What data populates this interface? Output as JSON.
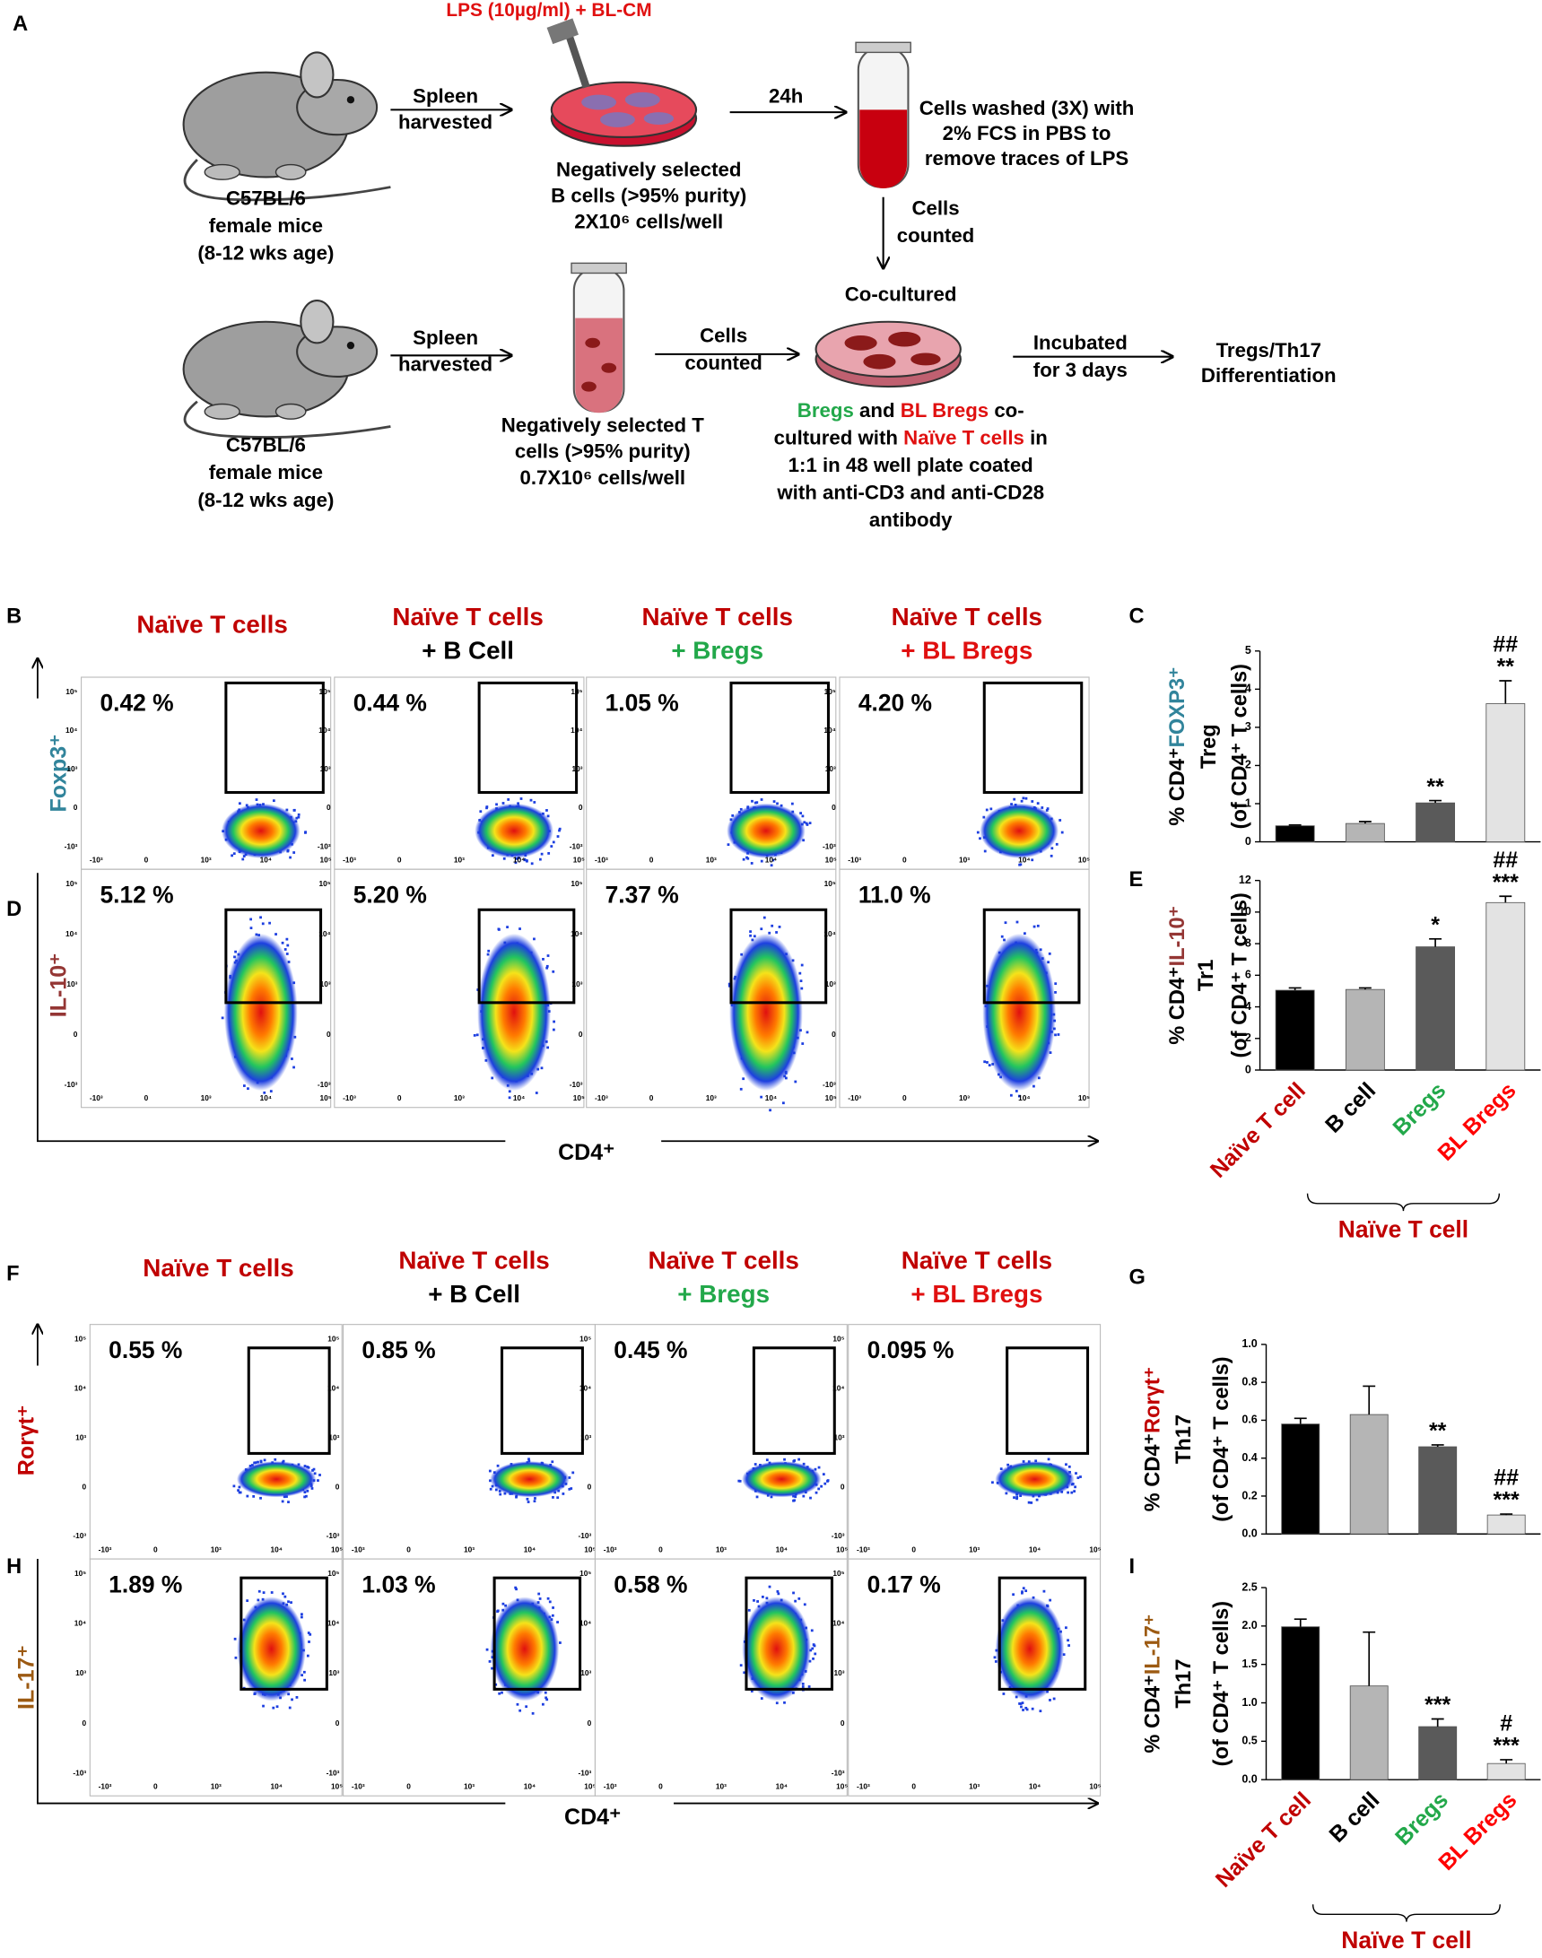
{
  "panel_a": {
    "label": "A",
    "treatment": "LPS (10µg/ml) + BL-CM",
    "mouse_1": [
      "C57BL/6",
      "female mice",
      "(8-12 wks age)"
    ],
    "spleen_1": [
      "Spleen",
      "harvested"
    ],
    "b_cells": [
      "Negatively selected",
      "B cells (>95% purity)",
      "2X10⁶ cells/well"
    ],
    "time": "24h",
    "wash": [
      "Cells washed (3X) with",
      "2% FCS in PBS to",
      "remove traces of LPS"
    ],
    "counted_1": [
      "Cells",
      "counted"
    ],
    "coculture": "Co-cultured",
    "mouse_2": [
      "C57BL/6",
      "female mice",
      "(8-12 wks age)"
    ],
    "spleen_2": [
      "Spleen",
      "harvested"
    ],
    "t_cells": [
      "Negatively selected T",
      "cells (>95% purity)",
      "0.7X10⁶ cells/well"
    ],
    "counted_2": [
      "Cells",
      "counted"
    ],
    "incubate": [
      "Incubated",
      "for 3 days"
    ],
    "outcome": [
      "Tregs/Th17",
      "Differentiation"
    ],
    "coculture_note": [
      [
        {
          "text": "Bregs",
          "color": "#22a84a"
        },
        {
          "text": " and "
        },
        {
          "text": "BL Bregs",
          "color": "#e01010"
        },
        {
          "text": " co-"
        }
      ],
      [
        {
          "text": "cultured with "
        },
        {
          "text": "Naïve T cells",
          "color": "#e01010"
        },
        {
          "text": " in"
        }
      ],
      [
        {
          "text": "1:1 in 48 well plate coated"
        }
      ],
      [
        {
          "text": "with anti-CD3 and anti-CD28"
        }
      ],
      [
        {
          "text": "antibody"
        }
      ]
    ]
  },
  "flow_treg": {
    "panel_labels": [
      "B",
      "D"
    ],
    "headers": [
      [
        {
          "text": "Naïve T cells",
          "color": "#c00000"
        }
      ],
      [
        {
          "text": "Naïve T cells",
          "color": "#c00000"
        },
        {
          "text": "+ B Cell",
          "color": "#000000"
        }
      ],
      [
        {
          "text": "Naïve T cells",
          "color": "#c00000"
        },
        {
          "text": "+ Bregs",
          "color": "#22a84a"
        }
      ],
      [
        {
          "text": "Naïve T cells",
          "color": "#c00000"
        },
        {
          "text": "+ BL Bregs",
          "color": "#e01010"
        }
      ]
    ],
    "rows": [
      {
        "label": "Foxp3⁺",
        "color": "#31849b",
        "percents": [
          "0.42 %",
          "0.44 %",
          "1.05 %",
          "4.20 %"
        ]
      },
      {
        "label": "IL-10⁺",
        "color": "#943634",
        "percents": [
          "5.12 %",
          "5.20 %",
          "7.37 %",
          "11.0 %"
        ]
      }
    ],
    "x_axis": "CD4⁺"
  },
  "flow_th17": {
    "panel_labels": [
      "F",
      "H"
    ],
    "headers": [
      [
        {
          "text": "Naïve T cells",
          "color": "#c00000"
        }
      ],
      [
        {
          "text": "Naïve T cells",
          "color": "#c00000"
        },
        {
          "text": "+ B Cell",
          "color": "#000000"
        }
      ],
      [
        {
          "text": "Naïve T cells",
          "color": "#c00000"
        },
        {
          "text": "+ Bregs",
          "color": "#22a84a"
        }
      ],
      [
        {
          "text": "Naïve T cells",
          "color": "#c00000"
        },
        {
          "text": "+ BL Bregs",
          "color": "#e01010"
        }
      ]
    ],
    "rows": [
      {
        "label": "Rorγt⁺",
        "color": "#c00000",
        "percents": [
          "0.55 %",
          "0.85 %",
          "0.45 %",
          "0.095 %"
        ]
      },
      {
        "label": "IL-17⁺",
        "color": "#9c5a12",
        "percents": [
          "1.89 %",
          "1.03 %",
          "0.58 %",
          "0.17 %"
        ]
      }
    ],
    "x_axis": "CD4⁺"
  },
  "flow_axis": {
    "x_ticks": [
      "-10³",
      "0",
      "10³",
      "10⁴",
      "10⁵"
    ],
    "y_ticks": [
      "10⁵",
      "10⁴",
      "10³",
      "0",
      "-10³"
    ]
  },
  "chart_data": [
    {
      "type": "bar",
      "panel_label": "C",
      "y_label": [
        [
          {
            "text": "% CD4⁺"
          },
          {
            "text": "FOXP3⁺",
            "color": "#31849b"
          }
        ],
        [
          {
            "text": "Treg"
          }
        ],
        [
          {
            "text": "(of CD4⁺ T cells)"
          }
        ]
      ],
      "categories": [
        null,
        null,
        null,
        null
      ],
      "values": [
        0.42,
        0.48,
        1.02,
        3.62
      ],
      "errors": [
        0.02,
        0.05,
        0.06,
        0.6
      ],
      "colors": [
        "#000000",
        "#b5b5b5",
        "#5a5a5a",
        "#e3e3e3"
      ],
      "significance": [
        null,
        null,
        [
          "**"
        ],
        [
          "##",
          "**"
        ]
      ],
      "ylim": [
        0,
        5
      ],
      "yticks": [
        0,
        1,
        2,
        3,
        4,
        5
      ]
    },
    {
      "type": "bar",
      "panel_label": "E",
      "y_label": [
        [
          {
            "text": "% CD4⁺"
          },
          {
            "text": "IL-10⁺",
            "color": "#943634"
          }
        ],
        [
          {
            "text": "Tr1"
          }
        ],
        [
          {
            "text": "(of CD4⁺ T cells)"
          }
        ]
      ],
      "categories": [
        "Naïve T cell",
        "B cell",
        "Bregs",
        "BL Bregs"
      ],
      "category_colors": [
        "#c00000",
        "#000000",
        "#22a84a",
        "#ff0000"
      ],
      "group_label": "Naïve T cell",
      "group_color": "#c00000",
      "values": [
        5.05,
        5.1,
        7.8,
        10.6
      ],
      "errors": [
        0.15,
        0.1,
        0.5,
        0.4
      ],
      "colors": [
        "#000000",
        "#b5b5b5",
        "#5a5a5a",
        "#e3e3e3"
      ],
      "significance": [
        null,
        null,
        [
          "*"
        ],
        [
          "##",
          "***"
        ]
      ],
      "ylim": [
        0,
        12
      ],
      "yticks": [
        0,
        2,
        4,
        6,
        8,
        10,
        12
      ]
    },
    {
      "type": "bar",
      "panel_label": "G",
      "y_label": [
        [
          {
            "text": "% CD4⁺"
          },
          {
            "text": "Rorγt⁺",
            "color": "#c00000"
          }
        ],
        [
          {
            "text": "Th17"
          }
        ],
        [
          {
            "text": "(of CD4⁺ T cells)"
          }
        ]
      ],
      "categories": [
        null,
        null,
        null,
        null
      ],
      "values": [
        0.58,
        0.63,
        0.46,
        0.1
      ],
      "errors": [
        0.03,
        0.15,
        0.01,
        0.005
      ],
      "colors": [
        "#000000",
        "#b5b5b5",
        "#5a5a5a",
        "#e3e3e3"
      ],
      "significance": [
        null,
        null,
        [
          "**"
        ],
        [
          "##",
          "***"
        ]
      ],
      "ylim": [
        0,
        1
      ],
      "yticks": [
        {
          "value": 0,
          "label": "0.0"
        },
        {
          "value": 0.2,
          "label": "0.2"
        },
        {
          "value": 0.4,
          "label": "0.4"
        },
        {
          "value": 0.6,
          "label": "0.6"
        },
        {
          "value": 0.8,
          "label": "0.8"
        },
        {
          "value": 1,
          "label": "1.0"
        }
      ]
    },
    {
      "type": "bar",
      "panel_label": "I",
      "y_label": [
        [
          {
            "text": "% CD4⁺"
          },
          {
            "text": "IL-17⁺",
            "color": "#9c5a12"
          }
        ],
        [
          {
            "text": "Th17"
          }
        ],
        [
          {
            "text": "(of CD4⁺ T cells)"
          }
        ]
      ],
      "categories": [
        "Naïve T cell",
        "B cell",
        "Bregs",
        "BL Bregs"
      ],
      "category_colors": [
        "#c00000",
        "#000000",
        "#22a84a",
        "#ff0000"
      ],
      "group_label": "Naïve T cell",
      "group_color": "#c00000",
      "values": [
        1.99,
        1.22,
        0.69,
        0.21
      ],
      "errors": [
        0.1,
        0.7,
        0.1,
        0.05
      ],
      "colors": [
        "#000000",
        "#b5b5b5",
        "#5a5a5a",
        "#e3e3e3"
      ],
      "significance": [
        null,
        null,
        [
          "***"
        ],
        [
          "#",
          "***"
        ]
      ],
      "ylim": [
        0,
        2.5
      ],
      "yticks": [
        {
          "value": 0,
          "label": "0.0"
        },
        {
          "value": 0.5,
          "label": "0.5"
        },
        {
          "value": 1,
          "label": "1.0"
        },
        {
          "value": 1.5,
          "label": "1.5"
        },
        {
          "value": 2,
          "label": "2.0"
        },
        {
          "value": 2.5,
          "label": "2.5"
        }
      ]
    }
  ]
}
